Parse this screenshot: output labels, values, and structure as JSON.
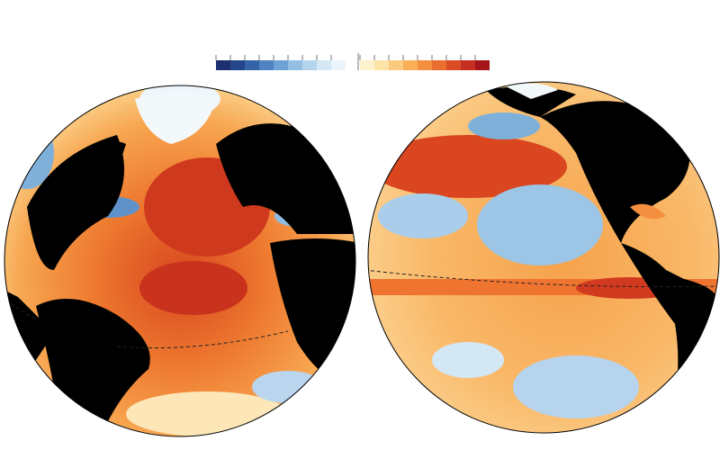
{
  "colorbar": {
    "negative_colors": [
      "#1c2f6e",
      "#24478c",
      "#3563a8",
      "#4f82c0",
      "#6fa2d4",
      "#92bfe3",
      "#b4d5ee",
      "#d3e7f5",
      "#ebf4fa"
    ],
    "positive_colors": [
      "#fdf1cc",
      "#fde3a6",
      "#fcca7e",
      "#faae58",
      "#f48f40",
      "#ea6d30",
      "#db4c26",
      "#c52e20",
      "#a4161a"
    ]
  }
}
